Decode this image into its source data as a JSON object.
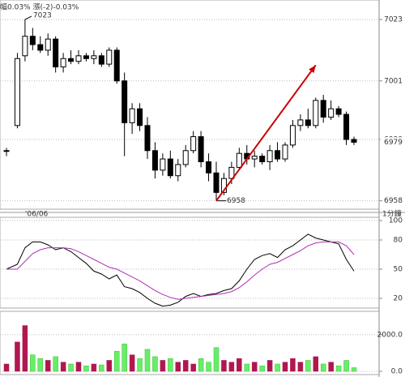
{
  "chart_data": [
    {
      "type": "candlestick",
      "title": "幅0.03%  漲(-2)-0.03%",
      "interval": "1分鐘",
      "categories": [
        null,
        null,
        "'06/06",
        null,
        null,
        null,
        null,
        null,
        null,
        null,
        null,
        null,
        null,
        null,
        null,
        null,
        null,
        null,
        null,
        null,
        null,
        null,
        null,
        null,
        null,
        null,
        null,
        null,
        null,
        null,
        null,
        null,
        null,
        null,
        null,
        null,
        null,
        null,
        null,
        null,
        null,
        null,
        null,
        null,
        null,
        null
      ],
      "open": [
        6976,
        6985,
        7010,
        7017,
        7014,
        7012,
        7016,
        7006,
        7009,
        7008,
        7010,
        7009,
        7010,
        7007,
        7012,
        7001,
        6986,
        6991,
        6985,
        6976,
        6969,
        6973,
        6967,
        6971,
        6976,
        6981,
        6972,
        6968,
        6961,
        6966,
        6970,
        6975,
        6973,
        6974,
        6972,
        6976,
        6973,
        6978,
        6985,
        6987,
        6985,
        6994,
        6988,
        6991,
        6989,
        6980
      ],
      "high": [
        6977,
        7011,
        7023,
        7020,
        7017,
        7018,
        7017,
        7011,
        7012,
        7012,
        7011,
        7012,
        7011,
        7013,
        7013,
        7004,
        6993,
        6993,
        6988,
        6979,
        6975,
        6976,
        6973,
        6978,
        6983,
        6983,
        6975,
        6972,
        6968,
        6972,
        6977,
        6978,
        6976,
        6975,
        6978,
        6979,
        6979,
        6987,
        6989,
        6991,
        6995,
        6996,
        6994,
        6992,
        6990,
        6981
      ],
      "low": [
        6974,
        6984,
        7008,
        7012,
        7011,
        7010,
        7004,
        7004,
        7007,
        7007,
        7008,
        7007,
        7006,
        7006,
        7000,
        6974,
        6982,
        6983,
        6973,
        6966,
        6967,
        6966,
        6965,
        6970,
        6975,
        6970,
        6965,
        6958,
        6960,
        6964,
        6969,
        6971,
        6970,
        6971,
        6969,
        6972,
        6972,
        6977,
        6983,
        6984,
        6984,
        6986,
        6987,
        6988,
        6978,
        6978
      ],
      "close": [
        6976,
        7009,
        7017,
        7014,
        7012,
        7016,
        7006,
        7009,
        7008,
        7010,
        7009,
        7010,
        7007,
        7012,
        7001,
        6986,
        6991,
        6985,
        6976,
        6969,
        6973,
        6967,
        6971,
        6976,
        6981,
        6972,
        6968,
        6961,
        6966,
        6970,
        6975,
        6973,
        6974,
        6972,
        6976,
        6973,
        6978,
        6985,
        6987,
        6985,
        6994,
        6988,
        6991,
        6989,
        6980,
        6979
      ],
      "up_color": "#ffffff",
      "down_color": "#000000",
      "ylim": [
        6955,
        7030
      ],
      "yticks": [
        6958,
        6980,
        7001,
        7023
      ],
      "last_color": "#c00000",
      "arrow_color": "#cc0000"
    },
    {
      "type": "line",
      "ylim": [
        10,
        100
      ],
      "yticks": [
        20,
        50,
        80,
        100
      ],
      "series": [
        {
          "color": "#000000",
          "values": [
            50,
            55,
            72,
            78,
            78,
            75,
            70,
            72,
            68,
            62,
            56,
            48,
            45,
            40,
            44,
            32,
            30,
            26,
            20,
            15,
            12,
            13,
            16,
            22,
            25,
            22,
            24,
            25,
            28,
            30,
            38,
            50,
            60,
            64,
            66,
            62,
            70,
            74,
            80,
            86,
            82,
            80,
            78,
            76,
            60,
            48
          ]
        },
        {
          "color": "#b030b0",
          "values": [
            50,
            50,
            58,
            66,
            70,
            72,
            72,
            72,
            71,
            68,
            64,
            60,
            56,
            52,
            50,
            46,
            42,
            38,
            33,
            28,
            24,
            21,
            19,
            20,
            21,
            22,
            23,
            24,
            25,
            27,
            31,
            37,
            44,
            50,
            55,
            57,
            61,
            65,
            69,
            74,
            77,
            78,
            78,
            78,
            74,
            65
          ]
        }
      ]
    },
    {
      "type": "bar",
      "ylim": [
        0,
        3100
      ],
      "yticks": [
        {
          "value": 0,
          "label": "0.0"
        },
        {
          "value": 2000,
          "label": "2000.0"
        }
      ],
      "up_color": "#b0174f",
      "down_color": "#66ee66",
      "values": [
        400,
        1600,
        2500,
        900,
        700,
        600,
        800,
        500,
        400,
        500,
        300,
        400,
        350,
        600,
        1100,
        1500,
        900,
        700,
        1200,
        800,
        600,
        700,
        500,
        600,
        400,
        700,
        500,
        1300,
        600,
        500,
        700,
        400,
        500,
        300,
        600,
        400,
        500,
        700,
        500,
        600,
        800,
        400,
        500,
        300,
        600,
        200
      ]
    }
  ]
}
